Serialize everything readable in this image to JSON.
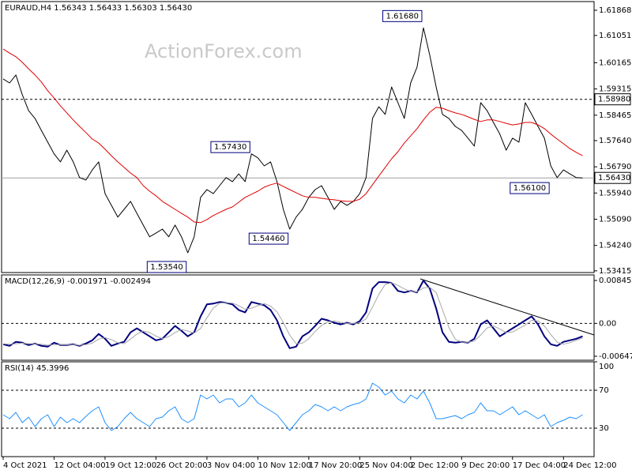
{
  "chart_data": [
    {
      "type": "line",
      "title": "EURAUD,H4  1.56343 1.56433 1.56303 1.56430",
      "watermark": "ActionForex.com",
      "ylim": [
        1.5336,
        1.6215
      ],
      "yticks": [
        1.61868,
        1.61051,
        1.60165,
        1.59315,
        1.58465,
        {
          "value": 1.5764,
          "label": "1.57640"
        },
        {
          "value": 1.5679,
          "label": "1.56790"
        },
        {
          "value": 1.5594,
          "label": "1.55940"
        },
        {
          "value": 1.5509,
          "label": "1.55090"
        },
        {
          "value": 1.5424,
          "label": "1.54240"
        },
        1.53415
      ],
      "series": [
        {
          "color": "#000000",
          "width": 1,
          "values": [
            1.5964,
            1.5951,
            1.5977,
            1.5913,
            1.5861,
            1.5836,
            1.5797,
            1.5759,
            1.5721,
            1.5695,
            1.5733,
            1.5695,
            1.5644,
            1.5636,
            1.5669,
            1.5695,
            1.5592,
            1.5554,
            1.5516,
            1.5541,
            1.5567,
            1.5528,
            1.549,
            1.5452,
            1.5464,
            1.5477,
            1.5452,
            1.549,
            1.5452,
            1.54,
            1.5452,
            1.558,
            1.5605,
            1.5592,
            1.5618,
            1.5644,
            1.5631,
            1.5656,
            1.5631,
            1.5721,
            1.5708,
            1.5682,
            1.5695,
            1.5631,
            1.5541,
            1.5477,
            1.5516,
            1.5541,
            1.558,
            1.5605,
            1.5618,
            1.558,
            1.5541,
            1.5567,
            1.5554,
            1.5567,
            1.5592,
            1.5644,
            1.5836,
            1.5874,
            1.5849,
            1.5938,
            1.5887,
            1.5836,
            1.5951,
            1.6002,
            1.613,
            1.6041,
            1.5938,
            1.5849,
            1.5836,
            1.581,
            1.5797,
            1.5772,
            1.5746,
            1.5887,
            1.5861,
            1.5823,
            1.5785,
            1.5733,
            1.5772,
            1.5759,
            1.5887,
            1.5849,
            1.581,
            1.5772,
            1.5682,
            1.5644,
            1.5669,
            1.5656,
            1.5644,
            1.5643
          ]
        },
        {
          "color": "#e00000",
          "width": 1,
          "values": [
            1.6061,
            1.6048,
            1.6036,
            1.6018,
            1.5997,
            1.5977,
            1.5954,
            1.5926,
            1.5902,
            1.5877,
            1.5854,
            1.5831,
            1.581,
            1.579,
            1.5769,
            1.5756,
            1.5736,
            1.5715,
            1.5695,
            1.5677,
            1.5659,
            1.5644,
            1.5618,
            1.56,
            1.5585,
            1.5567,
            1.5554,
            1.5541,
            1.5528,
            1.5516,
            1.55,
            1.5498,
            1.5508,
            1.5521,
            1.5531,
            1.5541,
            1.5549,
            1.5564,
            1.558,
            1.559,
            1.56,
            1.5613,
            1.5621,
            1.5626,
            1.5615,
            1.5605,
            1.5595,
            1.5585,
            1.558,
            1.558,
            1.5577,
            1.5574,
            1.5572,
            1.5569,
            1.5567,
            1.5567,
            1.5574,
            1.5592,
            1.5621,
            1.5649,
            1.5677,
            1.5705,
            1.5728,
            1.5756,
            1.5779,
            1.5803,
            1.5831,
            1.5856,
            1.5872,
            1.5869,
            1.5861,
            1.5854,
            1.5849,
            1.5841,
            1.5833,
            1.5826,
            1.5831,
            1.5831,
            1.5826,
            1.582,
            1.5815,
            1.5818,
            1.5823,
            1.5823,
            1.5815,
            1.5803,
            1.5785,
            1.5769,
            1.5754,
            1.5738,
            1.5726,
            1.5715
          ]
        }
      ],
      "levels": [
        {
          "value": 1.5898,
          "label": "1.58980",
          "style": "dashed"
        },
        {
          "value": 1.5643,
          "label": "1.56430",
          "style": "solid"
        }
      ],
      "annotations": [
        {
          "value": 1.6168,
          "label": "1.61680",
          "at": 66
        },
        {
          "value": 1.5743,
          "label": "1.57430",
          "at": 39
        },
        {
          "value": 1.5446,
          "label": "1.54460",
          "at": 45
        },
        {
          "value": 1.5354,
          "label": "1.53540",
          "at": 29
        },
        {
          "value": 1.561,
          "label": "1.56100",
          "at": 86
        }
      ]
    },
    {
      "type": "line",
      "title": "MACD(12,26,9) -0.001971 -0.002494",
      "ylim": [
        -0.00726,
        0.00955
      ],
      "yticks": [
        0.008452,
        {
          "value": 0,
          "label": "0.00"
        },
        -0.006475
      ],
      "levels": [
        {
          "value": 0,
          "style": "dashed"
        }
      ],
      "series": [
        {
          "color": "#00007f",
          "width": 2,
          "values": [
            -0.00412,
            -0.00443,
            -0.00364,
            -0.0038,
            -0.00427,
            -0.00396,
            -0.00443,
            -0.00459,
            -0.0038,
            -0.00427,
            -0.00427,
            -0.00412,
            -0.00443,
            -0.00396,
            -0.00333,
            -0.00207,
            -0.00302,
            -0.00443,
            -0.00396,
            -0.00364,
            -0.00176,
            -0.00097,
            -0.00176,
            -0.00254,
            -0.00333,
            -0.00302,
            -0.00176,
            -0.0005,
            -0.00145,
            -0.00254,
            -0.00176,
            0.00138,
            0.00374,
            0.0039,
            0.00421,
            0.00405,
            0.00374,
            0.00264,
            0.00217,
            0.00421,
            0.0039,
            0.00358,
            0.00264,
            0.0006,
            -0.00254,
            -0.0049,
            -0.00459,
            -0.00254,
            -0.00176,
            -0.0005,
            0.00091,
            0.0006,
            0.00013,
            -0.00019,
            0.00013,
            -0.00019,
            0.00044,
            0.00217,
            0.00688,
            0.00814,
            0.00814,
            0.00798,
            0.00641,
            0.0061,
            0.00641,
            0.0061,
            0.00845,
            0.00688,
            0.00295,
            -0.00176,
            -0.00364,
            -0.0038,
            -0.00364,
            -0.0038,
            -0.00302,
            -0.00019,
            0.0006,
            -0.00097,
            -0.00254,
            -0.00176,
            -0.00097,
            -0.00019,
            0.0006,
            0.00138,
            -0.00019,
            -0.00254,
            -0.00412,
            -0.00443,
            -0.00364,
            -0.00333,
            -0.00302,
            -0.00254
          ]
        },
        {
          "color": "#a8a8a8",
          "width": 1,
          "values": [
            -0.004,
            -0.0041,
            -0.004,
            -0.0039,
            -0.004,
            -0.004,
            -0.0041,
            -0.0043,
            -0.0042,
            -0.0042,
            -0.0042,
            -0.0042,
            -0.0043,
            -0.0042,
            -0.0039,
            -0.0031,
            -0.0028,
            -0.0032,
            -0.0038,
            -0.004,
            -0.0031,
            -0.0021,
            -0.0015,
            -0.0018,
            -0.0025,
            -0.003,
            -0.0026,
            -0.0018,
            -0.0012,
            -0.0015,
            -0.0019,
            -0.001,
            0.0011,
            0.003,
            0.004,
            0.0041,
            0.004,
            0.0035,
            0.0028,
            0.003,
            0.0035,
            0.0039,
            0.0034,
            0.0023,
            0.0002,
            -0.0023,
            -0.004,
            -0.0039,
            -0.003,
            -0.0016,
            -0.0004,
            0.0003,
            0.0005,
            0.0002,
            0,
            0,
            0.0001,
            0.0009,
            0.0032,
            0.0057,
            0.0077,
            0.008,
            0.0075,
            0.0068,
            0.0063,
            0.0062,
            0.007,
            0.0071,
            0.0061,
            0.0027,
            -0.0008,
            -0.0031,
            -0.0037,
            -0.0037,
            -0.0035,
            -0.0023,
            -0.0009,
            -0.0005,
            -0.0011,
            -0.0018,
            -0.0017,
            -0.001,
            -0.0003,
            0.0006,
            0.0005,
            -0.0005,
            -0.0022,
            -0.0037,
            -0.0041,
            -0.0038,
            -0.0033,
            -0.0029
          ]
        }
      ]
    },
    {
      "type": "line",
      "title": "RSI(14) 45.3996",
      "ylim": [
        0,
        100
      ],
      "yticks": [
        100,
        70,
        30
      ],
      "levels": [
        {
          "value": 70,
          "style": "dashed"
        },
        {
          "value": 30,
          "style": "dashed"
        }
      ],
      "categories": [
        "4 Oct 2021",
        null,
        null,
        null,
        null,
        null,
        null,
        null,
        "12 Oct 04:00",
        null,
        null,
        null,
        null,
        null,
        null,
        null,
        "19 Oct 12:00",
        null,
        null,
        null,
        null,
        null,
        null,
        null,
        "26 Oct 20:00",
        null,
        null,
        null,
        null,
        null,
        null,
        null,
        "3 Nov 04:00",
        null,
        null,
        null,
        null,
        null,
        null,
        null,
        "10 Nov 12:00",
        null,
        null,
        null,
        null,
        null,
        null,
        null,
        "17 Nov 20:00",
        null,
        null,
        null,
        null,
        null,
        null,
        null,
        "25 Nov 04:00",
        null,
        null,
        null,
        null,
        null,
        null,
        null,
        "2 Dec 12:00",
        null,
        null,
        null,
        null,
        null,
        null,
        null,
        "9 Dec 20:00",
        null,
        null,
        null,
        null,
        null,
        null,
        null,
        "17 Dec 04:00",
        null,
        null,
        null,
        null,
        null,
        null,
        null,
        "24 Dec 12:00",
        null,
        null,
        null
      ],
      "series": [
        {
          "color": "#1e90ff",
          "width": 1,
          "values": [
            44.2,
            40,
            46.7,
            35.8,
            41.7,
            31.7,
            40,
            44.2,
            31.7,
            41.7,
            35.8,
            40,
            35.8,
            42.5,
            48.3,
            52.5,
            35.8,
            27.5,
            31.7,
            40,
            46.7,
            40,
            35.8,
            31.7,
            40,
            41.7,
            48.3,
            52.5,
            40,
            35.8,
            40,
            65,
            60.8,
            65,
            56.7,
            60.8,
            60.8,
            52.5,
            56.7,
            65,
            56.7,
            52.5,
            48.3,
            44.2,
            35.8,
            27.5,
            35.8,
            44.2,
            48.3,
            55,
            52.5,
            48.3,
            52.5,
            48.3,
            52.5,
            55,
            56.7,
            60.8,
            77.5,
            73.3,
            65,
            69.2,
            60.8,
            56.7,
            65,
            60.8,
            69.2,
            56.7,
            40,
            40,
            41.7,
            43.3,
            40,
            44.2,
            46.7,
            56.7,
            48.3,
            48.3,
            44.2,
            48.3,
            52.5,
            44.2,
            48.3,
            44.2,
            40,
            44.2,
            31.7,
            35.8,
            38.3,
            41.7,
            40,
            44.2
          ]
        }
      ]
    }
  ]
}
